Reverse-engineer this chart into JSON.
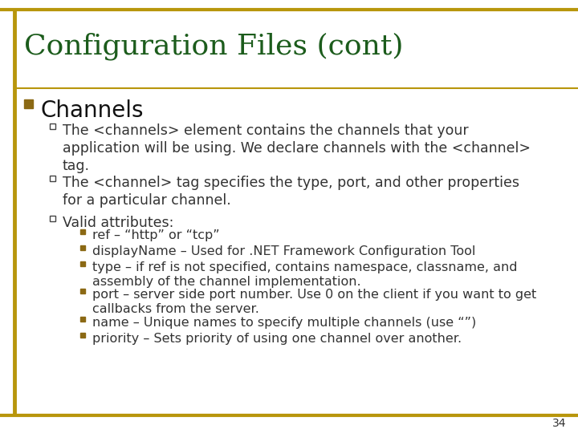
{
  "title": "Configuration Files (cont)",
  "title_color": "#1C5C1C",
  "background_color": "#FFFFFF",
  "border_color": "#B8960C",
  "main_bullet": "Channels",
  "main_bullet_color": "#8B6914",
  "sub_bullet_color": "#333333",
  "sub_bullets": [
    "The <channels> element contains the channels that your\napplication will be using. We declare channels with the <channel>\ntag.",
    "The <channel> tag specifies the type, port, and other properties\nfor a particular channel.",
    "Valid attributes:"
  ],
  "sub_sub_bullets": [
    "ref – “http” or “tcp”",
    "displayName – Used for .NET Framework Configuration Tool",
    "type – if ref is not specified, contains namespace, classname, and\nassembly of the channel implementation.",
    "port – server side port number. Use 0 on the client if you want to get\ncallbacks from the server.",
    "name – Unique names to specify multiple channels (use “”)",
    "priority – Sets priority of using one channel over another."
  ],
  "page_number": "34",
  "title_fontsize": 26,
  "main_bullet_fontsize": 20,
  "sub_bullet_fontsize": 12.5,
  "sub_sub_bullet_fontsize": 11.5
}
